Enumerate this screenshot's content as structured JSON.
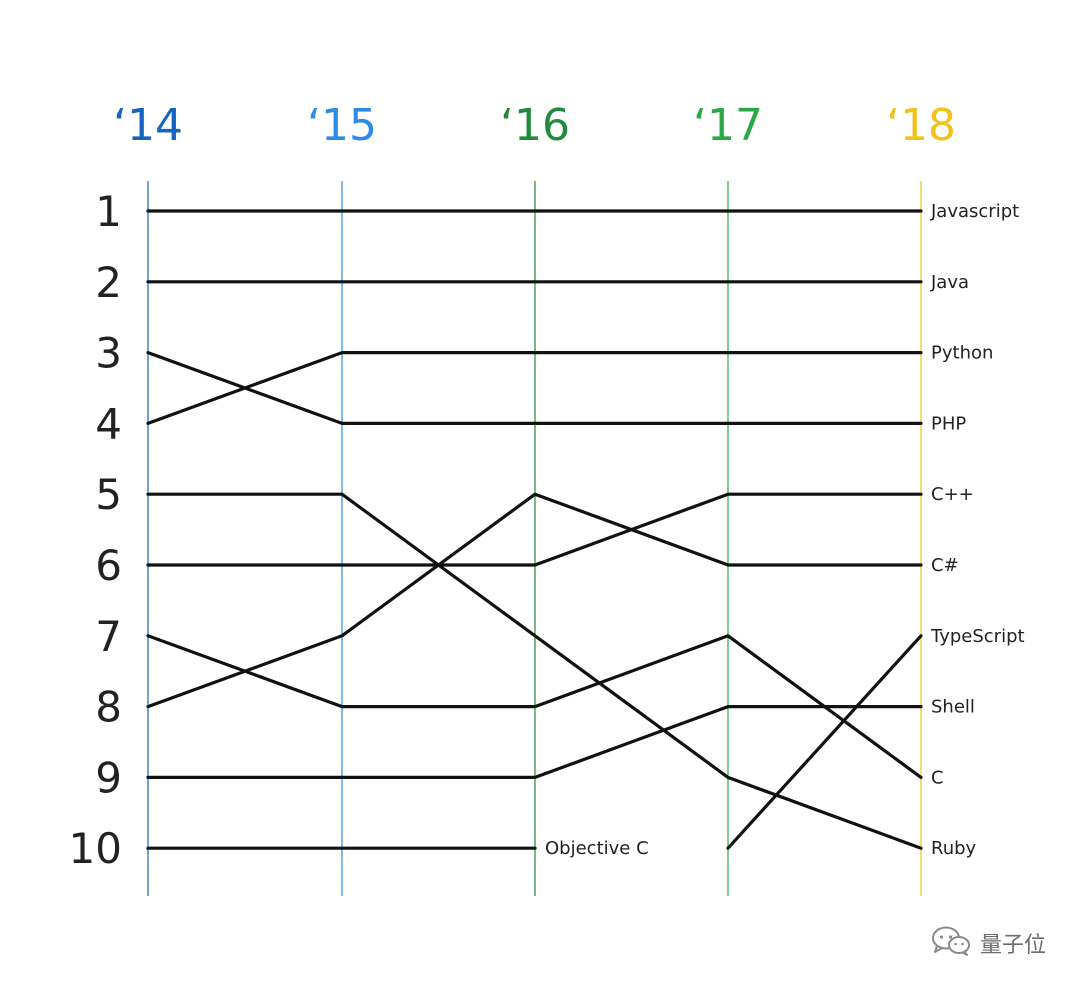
{
  "chart_data": {
    "type": "line",
    "title": "",
    "xlabel": "",
    "ylabel": "",
    "x": [
      "‘14",
      "‘15",
      "‘16",
      "‘17",
      "‘18"
    ],
    "year_colors": [
      "#1565c0",
      "#2e8be8",
      "#218a3c",
      "#2aa845",
      "#f2c21b"
    ],
    "ranks": [
      "1",
      "2",
      "3",
      "4",
      "5",
      "6",
      "7",
      "8",
      "9",
      "10"
    ],
    "ylim": [
      1,
      10
    ],
    "y_inverted": true,
    "grid": false,
    "legend": "none",
    "series": [
      {
        "name": "Javascript",
        "values": [
          1,
          1,
          1,
          1,
          1
        ]
      },
      {
        "name": "Java",
        "values": [
          2,
          2,
          2,
          2,
          2
        ]
      },
      {
        "name": "Python",
        "values": [
          4,
          3,
          3,
          3,
          3
        ]
      },
      {
        "name": "PHP",
        "values": [
          3,
          4,
          4,
          4,
          4
        ]
      },
      {
        "name": "C++",
        "values": [
          6,
          6,
          6,
          5,
          5
        ]
      },
      {
        "name": "C#",
        "values": [
          8,
          7,
          5,
          6,
          6
        ]
      },
      {
        "name": "TypeScript",
        "values": [
          null,
          null,
          null,
          10,
          7
        ]
      },
      {
        "name": "Shell",
        "values": [
          9,
          9,
          9,
          8,
          8
        ]
      },
      {
        "name": "C",
        "values": [
          7,
          8,
          8,
          7,
          9
        ]
      },
      {
        "name": "Ruby",
        "values": [
          5,
          5,
          7,
          9,
          10
        ]
      },
      {
        "name": "Objective C",
        "values": [
          10,
          10,
          10,
          null,
          null
        ]
      }
    ]
  },
  "watermark": {
    "icon": "wechat-icon",
    "text": "量子位"
  }
}
